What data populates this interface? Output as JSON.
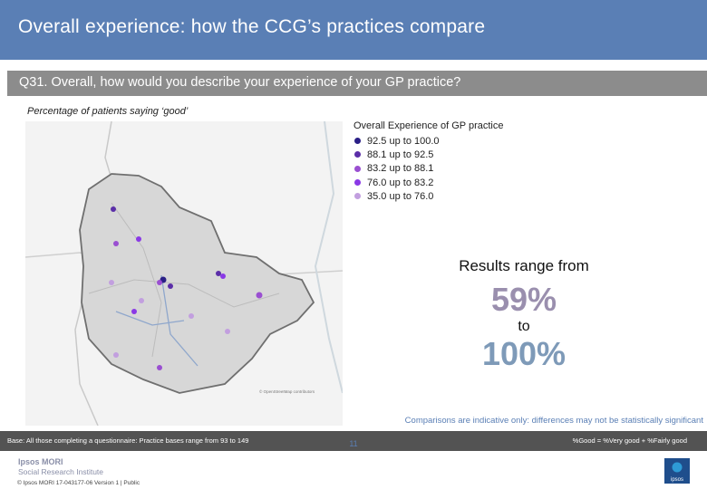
{
  "header": {
    "title": "Overall experience: how the CCG’s practices compare"
  },
  "question": {
    "text": "Q31. Overall, how would you describe your experience of your GP practice?"
  },
  "subtitle": "Percentage of patients saying ‘good’",
  "map": {
    "credit": "© OpenStreetMap contributors"
  },
  "legend": {
    "title": "Overall Experience of GP practice",
    "items": [
      {
        "label": "92.5 up to 100.0",
        "color": "#2a1f86"
      },
      {
        "label": "88.1 up to   92.5",
        "color": "#5b2ea8"
      },
      {
        "label": "83.2 up to   88.1",
        "color": "#9a4fd1"
      },
      {
        "label": "76.0 up to   83.2",
        "color": "#8a39e6"
      },
      {
        "label": "35.0 up to   76.0",
        "color": "#c29fdf"
      }
    ]
  },
  "results": {
    "intro": "Results range from",
    "low": "59%",
    "to": "to",
    "high": "100%"
  },
  "caveat": "Comparisons are indicative only: differences may not be statistically significant",
  "base": {
    "text": "Base: All those completing a questionnaire: Practice bases range from 93 to 149",
    "note": "%Good = %Very good + %Fairly good"
  },
  "footer": {
    "page": "11",
    "brand": "Ipsos MORI",
    "division": "Social Research Institute",
    "meta": "© Ipsos MORI     17-043177-06 Version 1 | Public",
    "badge": "ipsos"
  }
}
